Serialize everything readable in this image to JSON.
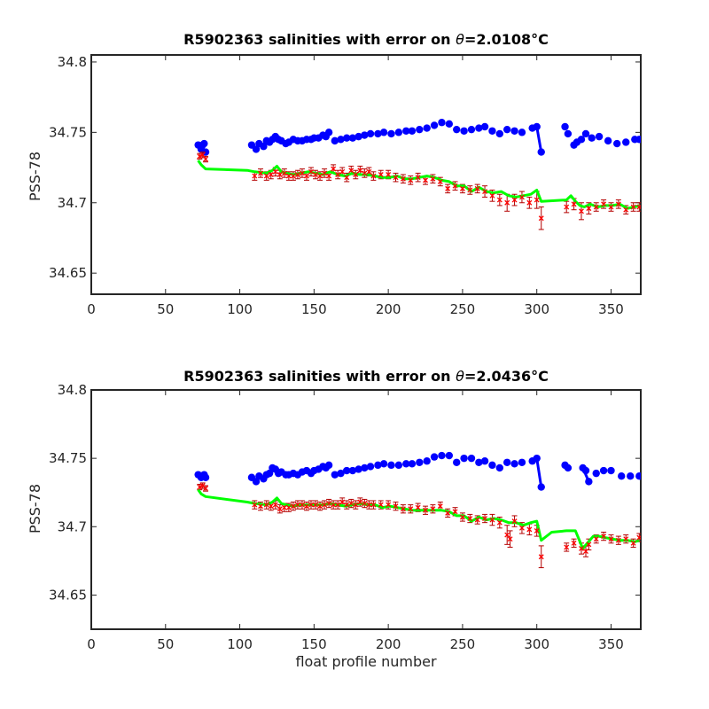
{
  "chart_data": [
    {
      "type": "scatter",
      "title_prefix": "R5902363 salinities with error on ",
      "title_theta": "θ",
      "title_value": "=2.0108",
      "title_unit": "°C",
      "ylabel": "PSS-78",
      "xlabel": "",
      "xlim": [
        0,
        370
      ],
      "ylim": [
        34.635,
        34.805
      ],
      "xticks": [
        0,
        50,
        100,
        150,
        200,
        250,
        300,
        350
      ],
      "yticks": [
        34.65,
        34.7,
        34.75,
        34.8
      ],
      "yticklabels": [
        "34.65",
        "34.7",
        "34.75",
        "34.8"
      ],
      "colors": {
        "blue": "#0000ff",
        "red": "#ff0000",
        "green": "#00ff00",
        "errorbar": "#b40000"
      },
      "blue": {
        "x": [
          72,
          74,
          75,
          76,
          77,
          108,
          111,
          113,
          116,
          118,
          120,
          122,
          124,
          126,
          128,
          131,
          133,
          136,
          139,
          142,
          145,
          148,
          150,
          153,
          156,
          158,
          160,
          164,
          168,
          172,
          176,
          180,
          184,
          188,
          193,
          197,
          202,
          207,
          212,
          216,
          221,
          226,
          231,
          236,
          241,
          246,
          251,
          256,
          261,
          265,
          270,
          275,
          280,
          285,
          290,
          297,
          300,
          303,
          319,
          321,
          325,
          327,
          330,
          333,
          337,
          342,
          348,
          354,
          360,
          366,
          369
        ],
        "y": [
          34.741,
          34.738,
          34.741,
          34.742,
          34.736,
          34.741,
          34.738,
          34.742,
          34.74,
          34.744,
          34.743,
          34.745,
          34.747,
          34.745,
          34.744,
          34.742,
          34.743,
          34.745,
          34.744,
          34.744,
          34.745,
          34.745,
          34.746,
          34.746,
          34.748,
          34.747,
          34.75,
          34.744,
          34.745,
          34.746,
          34.746,
          34.747,
          34.748,
          34.749,
          34.749,
          34.75,
          34.749,
          34.75,
          34.751,
          34.751,
          34.752,
          34.753,
          34.755,
          34.757,
          34.756,
          34.752,
          34.751,
          34.752,
          34.753,
          34.754,
          34.751,
          34.749,
          34.752,
          34.751,
          34.75,
          34.753,
          34.754,
          34.736,
          34.754,
          34.749,
          34.741,
          34.743,
          34.745,
          34.749,
          34.746,
          34.747,
          34.744,
          34.742,
          34.743,
          34.745,
          34.745
        ],
        "lines": [
          [
            300,
            303,
            34.754,
            34.736
          ]
        ]
      },
      "green": {
        "x": [
          72,
          74,
          77,
          105,
          110,
          118,
          122,
          125,
          128,
          131,
          136,
          141,
          146,
          151,
          156,
          161,
          166,
          171,
          176,
          181,
          186,
          191,
          196,
          201,
          206,
          211,
          216,
          221,
          226,
          231,
          236,
          241,
          246,
          251,
          256,
          261,
          266,
          271,
          276,
          281,
          286,
          291,
          296,
          300,
          303,
          320,
          323,
          326,
          329,
          332,
          336,
          341,
          346,
          351,
          356,
          361,
          366,
          369
        ],
        "y": [
          34.73,
          34.727,
          34.724,
          34.723,
          34.722,
          34.721,
          34.723,
          34.726,
          34.722,
          34.721,
          34.72,
          34.721,
          34.722,
          34.721,
          34.72,
          34.722,
          34.72,
          34.719,
          34.721,
          34.72,
          34.72,
          34.719,
          34.718,
          34.718,
          34.719,
          34.717,
          34.717,
          34.718,
          34.719,
          34.718,
          34.716,
          34.715,
          34.712,
          34.712,
          34.708,
          34.711,
          34.708,
          34.707,
          34.708,
          34.705,
          34.704,
          34.705,
          34.706,
          34.709,
          34.701,
          34.702,
          34.705,
          34.701,
          34.698,
          34.697,
          34.699,
          34.697,
          34.698,
          34.698,
          34.699,
          34.696,
          34.697,
          34.698
        ]
      },
      "red": {
        "x": [
          73,
          75,
          77,
          110,
          114,
          118,
          121,
          124,
          127,
          130,
          133,
          136,
          139,
          142,
          145,
          148,
          151,
          154,
          157,
          160,
          163,
          166,
          169,
          172,
          175,
          178,
          181,
          184,
          187,
          190,
          195,
          200,
          205,
          210,
          215,
          220,
          225,
          230,
          235,
          240,
          245,
          250,
          255,
          260,
          265,
          270,
          275,
          280,
          285,
          290,
          295,
          300,
          303,
          320,
          325,
          330,
          335,
          340,
          345,
          350,
          355,
          360,
          365,
          369
        ],
        "y": [
          34.733,
          34.734,
          34.731,
          34.719,
          34.721,
          34.719,
          34.72,
          34.722,
          34.72,
          34.721,
          34.719,
          34.719,
          34.72,
          34.721,
          34.719,
          34.722,
          34.72,
          34.719,
          34.721,
          34.719,
          34.724,
          34.72,
          34.722,
          34.718,
          34.723,
          34.72,
          34.723,
          34.721,
          34.722,
          34.719,
          34.72,
          34.72,
          34.718,
          34.717,
          34.716,
          34.718,
          34.716,
          34.717,
          34.715,
          34.71,
          34.712,
          34.71,
          34.709,
          34.71,
          34.708,
          34.705,
          34.702,
          34.7,
          34.702,
          34.704,
          34.7,
          34.702,
          34.689,
          34.697,
          34.699,
          34.694,
          34.696,
          34.697,
          34.699,
          34.697,
          34.699,
          34.695,
          34.697,
          34.697
        ],
        "err": [
          0.002,
          0.002,
          0.002,
          0.003,
          0.003,
          0.003,
          0.003,
          0.003,
          0.003,
          0.003,
          0.003,
          0.003,
          0.003,
          0.003,
          0.003,
          0.003,
          0.003,
          0.003,
          0.003,
          0.003,
          0.003,
          0.003,
          0.003,
          0.003,
          0.003,
          0.003,
          0.003,
          0.003,
          0.003,
          0.003,
          0.003,
          0.003,
          0.003,
          0.003,
          0.003,
          0.003,
          0.003,
          0.003,
          0.003,
          0.003,
          0.003,
          0.003,
          0.003,
          0.003,
          0.004,
          0.004,
          0.004,
          0.006,
          0.004,
          0.004,
          0.004,
          0.006,
          0.008,
          0.004,
          0.004,
          0.006,
          0.004,
          0.003,
          0.003,
          0.003,
          0.003,
          0.003,
          0.003,
          0.003
        ]
      }
    },
    {
      "type": "scatter",
      "title_prefix": "R5902363 salinities with error on ",
      "title_theta": "θ",
      "title_value": "=2.0436",
      "title_unit": "°C",
      "ylabel": "PSS-78",
      "xlabel": "float profile number",
      "xlim": [
        0,
        370
      ],
      "ylim": [
        34.625,
        34.8
      ],
      "xticks": [
        0,
        50,
        100,
        150,
        200,
        250,
        300,
        350
      ],
      "yticks": [
        34.65,
        34.7,
        34.75,
        34.8
      ],
      "yticklabels": [
        "34.65",
        "34.7",
        "34.75",
        "34.8"
      ],
      "colors": {
        "blue": "#0000ff",
        "red": "#ff0000",
        "green": "#00ff00",
        "errorbar": "#b40000"
      },
      "blue": {
        "x": [
          72,
          74,
          75,
          76,
          77,
          108,
          111,
          113,
          116,
          118,
          120,
          122,
          124,
          126,
          128,
          131,
          133,
          136,
          139,
          142,
          145,
          148,
          150,
          153,
          156,
          158,
          160,
          164,
          168,
          172,
          176,
          180,
          184,
          188,
          193,
          197,
          202,
          207,
          212,
          216,
          221,
          226,
          231,
          236,
          241,
          246,
          251,
          256,
          261,
          265,
          270,
          275,
          280,
          285,
          290,
          297,
          300,
          303,
          319,
          321,
          331,
          333,
          335,
          340,
          345,
          350,
          357,
          363,
          369
        ],
        "y": [
          34.738,
          34.736,
          34.737,
          34.738,
          34.736,
          34.736,
          34.733,
          34.737,
          34.735,
          34.738,
          34.739,
          34.743,
          34.742,
          34.739,
          34.74,
          34.738,
          34.738,
          34.739,
          34.738,
          34.74,
          34.741,
          34.739,
          34.741,
          34.742,
          34.744,
          34.743,
          34.745,
          34.738,
          34.739,
          34.741,
          34.741,
          34.742,
          34.743,
          34.744,
          34.745,
          34.746,
          34.745,
          34.745,
          34.746,
          34.746,
          34.747,
          34.748,
          34.751,
          34.752,
          34.752,
          34.747,
          34.75,
          34.75,
          34.747,
          34.748,
          34.745,
          34.743,
          34.747,
          34.746,
          34.747,
          34.748,
          34.75,
          34.729,
          34.745,
          34.743,
          34.743,
          34.741,
          34.733,
          34.739,
          34.741,
          34.741,
          34.737,
          34.737,
          34.737
        ],
        "lines": [
          [
            300,
            303,
            34.75,
            34.729
          ],
          [
            331,
            335,
            34.743,
            34.733
          ]
        ]
      },
      "green": {
        "x": [
          72,
          74,
          77,
          105,
          110,
          118,
          122,
          125,
          128,
          131,
          136,
          141,
          146,
          151,
          156,
          161,
          166,
          171,
          176,
          181,
          186,
          191,
          196,
          201,
          206,
          211,
          216,
          221,
          226,
          231,
          236,
          241,
          246,
          251,
          256,
          261,
          266,
          271,
          276,
          281,
          286,
          291,
          296,
          300,
          303,
          310,
          320,
          326,
          331,
          334,
          338,
          342,
          346,
          351,
          356,
          361,
          366,
          369
        ],
        "y": [
          34.727,
          34.724,
          34.722,
          34.718,
          34.717,
          34.716,
          34.718,
          34.721,
          34.717,
          34.716,
          34.715,
          34.716,
          34.716,
          34.716,
          34.716,
          34.717,
          34.716,
          34.715,
          34.716,
          34.717,
          34.716,
          34.716,
          34.714,
          34.715,
          34.714,
          34.713,
          34.712,
          34.712,
          34.712,
          34.712,
          34.712,
          34.711,
          34.708,
          34.708,
          34.704,
          34.707,
          34.705,
          34.706,
          34.705,
          34.703,
          34.703,
          34.701,
          34.703,
          34.704,
          34.69,
          34.696,
          34.697,
          34.697,
          34.684,
          34.688,
          34.693,
          34.693,
          34.692,
          34.691,
          34.69,
          34.69,
          34.689,
          34.69
        ],
        "err": []
      },
      "red": {
        "x": [
          73,
          75,
          77,
          110,
          114,
          118,
          121,
          124,
          127,
          130,
          133,
          136,
          139,
          142,
          145,
          148,
          151,
          154,
          157,
          160,
          163,
          166,
          169,
          172,
          175,
          178,
          181,
          184,
          187,
          190,
          195,
          200,
          205,
          210,
          215,
          220,
          225,
          230,
          235,
          240,
          245,
          250,
          255,
          260,
          265,
          270,
          275,
          280,
          282,
          285,
          290,
          295,
          300,
          303,
          320,
          325,
          330,
          333,
          335,
          340,
          345,
          350,
          355,
          360,
          365,
          369
        ],
        "y": [
          34.729,
          34.73,
          34.728,
          34.716,
          34.715,
          34.716,
          34.715,
          34.716,
          34.713,
          34.714,
          34.714,
          34.715,
          34.716,
          34.716,
          34.715,
          34.716,
          34.716,
          34.715,
          34.716,
          34.717,
          34.716,
          34.716,
          34.718,
          34.716,
          34.717,
          34.716,
          34.718,
          34.717,
          34.716,
          34.716,
          34.716,
          34.716,
          34.715,
          34.713,
          34.713,
          34.714,
          34.712,
          34.713,
          34.715,
          34.71,
          34.711,
          34.707,
          34.706,
          34.705,
          34.706,
          34.705,
          34.703,
          34.694,
          34.691,
          34.704,
          34.699,
          34.698,
          34.697,
          34.678,
          34.685,
          34.688,
          34.684,
          34.682,
          34.687,
          34.691,
          34.693,
          34.691,
          34.69,
          34.691,
          34.688,
          34.692
        ],
        "err": [
          0.002,
          0.002,
          0.002,
          0.003,
          0.003,
          0.003,
          0.003,
          0.003,
          0.003,
          0.003,
          0.003,
          0.003,
          0.003,
          0.003,
          0.003,
          0.003,
          0.003,
          0.003,
          0.003,
          0.003,
          0.003,
          0.003,
          0.003,
          0.003,
          0.003,
          0.003,
          0.003,
          0.003,
          0.003,
          0.003,
          0.003,
          0.003,
          0.003,
          0.003,
          0.003,
          0.003,
          0.003,
          0.003,
          0.003,
          0.003,
          0.003,
          0.003,
          0.003,
          0.003,
          0.003,
          0.004,
          0.004,
          0.007,
          0.006,
          0.004,
          0.004,
          0.004,
          0.004,
          0.008,
          0.003,
          0.003,
          0.004,
          0.004,
          0.004,
          0.003,
          0.003,
          0.003,
          0.003,
          0.003,
          0.003,
          0.003
        ]
      }
    }
  ]
}
